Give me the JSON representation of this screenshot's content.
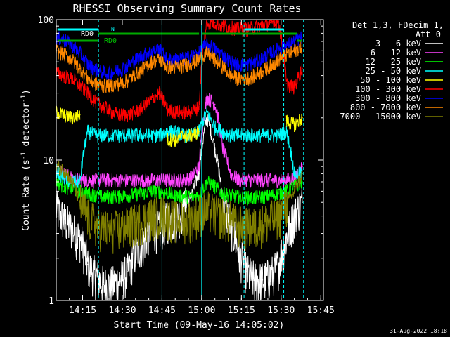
{
  "chart_data": {
    "type": "line",
    "title": "RHESSI Observing Summary Count Rates",
    "xlabel": "Start Time (09-May-16 14:05:02)",
    "ylabel": "Count Rate (s",
    "ylabel_sup": "-1",
    "ylabel_tail": " detector",
    "ylabel_tail_sup": "-1",
    "ylabel_end": ")",
    "y_scale": "log",
    "ylim": [
      1,
      100
    ],
    "xlim": [
      "14:05:02",
      "15:46:00"
    ],
    "x_ticks": [
      "14:15",
      "14:30",
      "14:45",
      "15:00",
      "15:15",
      "15:30",
      "15:45"
    ],
    "y_ticks": [
      "1",
      "10",
      "100"
    ],
    "legend_title": [
      "Det 1,3, FDecim 1,",
      "Att 0"
    ],
    "legend_position": "right",
    "footer_date": "31-Aug-2022 18:18",
    "annotations": [
      "RD0",
      "RD0",
      "N"
    ],
    "times": [
      "14:05",
      "14:08",
      "14:11",
      "14:14",
      "14:17",
      "14:20",
      "14:23",
      "14:26",
      "14:29",
      "14:32",
      "14:35",
      "14:38",
      "14:41",
      "14:44",
      "14:47",
      "14:50",
      "14:53",
      "14:56",
      "14:59",
      "15:02",
      "15:05",
      "15:08",
      "15:11",
      "15:14",
      "15:17",
      "15:20",
      "15:23",
      "15:26",
      "15:29",
      "15:32",
      "15:35",
      "15:38"
    ],
    "series": [
      {
        "name": "3 - 6 keV",
        "color": "#ffffff",
        "values": [
          4.5,
          3.8,
          3.2,
          2.8,
          1.8,
          1.5,
          1.3,
          1.3,
          1.4,
          1.6,
          2.2,
          2.6,
          3.4,
          3.2,
          3.8,
          3.8,
          4.5,
          5.5,
          8,
          20,
          12,
          5,
          3.5,
          2.2,
          1.6,
          1.4,
          1.4,
          1.5,
          1.8,
          2.8,
          4,
          5
        ]
      },
      {
        "name": "6 - 12 keV",
        "color": "#ff44ff",
        "values": [
          9,
          8,
          7.5,
          7.2,
          7.2,
          7.2,
          7.2,
          7.2,
          7.2,
          7.2,
          7.2,
          7.2,
          7.2,
          7.2,
          7.2,
          7.2,
          7.2,
          7.5,
          9,
          28,
          25,
          12,
          8,
          7.2,
          7.2,
          7.2,
          7.2,
          7.2,
          7.2,
          7.2,
          7.5,
          9
        ]
      },
      {
        "name": "12 - 25 keV",
        "color": "#00ff00",
        "values": [
          7,
          6.5,
          6.2,
          6,
          5.8,
          5.6,
          5.5,
          5.5,
          5.5,
          5.6,
          5.7,
          5.8,
          6,
          6,
          5.8,
          5.6,
          5.5,
          5.5,
          5.6,
          7,
          6.5,
          5.8,
          5.6,
          5.5,
          5.4,
          5.4,
          5.5,
          5.6,
          5.8,
          6,
          6.5,
          7
        ]
      },
      {
        "name": "25 - 50 keV",
        "color": "#00ffff",
        "values": [
          8.5,
          7.5,
          7,
          7,
          16,
          15,
          15,
          15,
          15,
          15,
          15,
          15,
          15,
          15,
          16,
          16,
          15,
          15,
          16,
          22,
          17,
          16,
          15,
          15,
          15,
          15,
          15,
          15,
          15,
          16,
          8,
          8
        ]
      },
      {
        "name": "50 - 100 keV",
        "color": "#ffff00",
        "values": [
          22,
          21,
          20,
          21,
          null,
          null,
          null,
          null,
          null,
          null,
          null,
          null,
          null,
          null,
          14,
          14,
          15,
          15,
          16,
          null,
          null,
          null,
          null,
          null,
          null,
          null,
          null,
          null,
          null,
          19,
          18,
          20
        ]
      },
      {
        "name": "100 - 300 keV",
        "color": "#ff0000",
        "values": [
          42,
          40,
          38,
          34,
          30,
          26,
          24,
          22,
          21,
          21,
          22,
          24,
          27,
          30,
          23,
          22,
          22,
          22,
          24,
          96,
          95,
          90,
          88,
          86,
          86,
          88,
          92,
          95,
          97,
          35,
          33,
          45
        ]
      },
      {
        "name": "300 - 800 keV",
        "color": "#0000ff",
        "values": [
          75,
          72,
          66,
          58,
          48,
          44,
          42,
          42,
          44,
          47,
          52,
          56,
          60,
          62,
          52,
          52,
          53,
          55,
          58,
          68,
          62,
          56,
          50,
          48,
          48,
          50,
          53,
          58,
          62,
          66,
          70,
          75
        ]
      },
      {
        "name": "800 - 7000 keV",
        "color": "#ff8800",
        "values": [
          60,
          57,
          52,
          45,
          38,
          35,
          34,
          34,
          35,
          37,
          41,
          45,
          50,
          52,
          46,
          46,
          47,
          49,
          52,
          58,
          52,
          46,
          40,
          38,
          38,
          40,
          43,
          47,
          52,
          56,
          60,
          65
        ]
      },
      {
        "name": "7000 - 15000 keV",
        "color": "#808000",
        "values": [
          9,
          8.5,
          7,
          5,
          4,
          3.5,
          3.3,
          3.2,
          3.3,
          3.4,
          3.6,
          3.8,
          4,
          4.2,
          4,
          3.8,
          3.8,
          3.9,
          4.2,
          4.5,
          4.2,
          4,
          3.8,
          3.5,
          3.4,
          3.4,
          3.6,
          3.8,
          4,
          4.8,
          6,
          8
        ]
      }
    ]
  }
}
